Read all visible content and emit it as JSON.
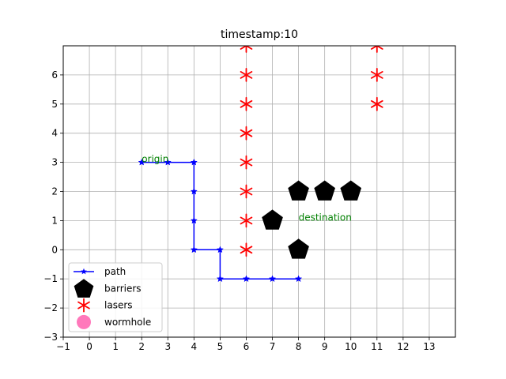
{
  "chart_data": {
    "type": "scatter",
    "title": "timestamp:10",
    "xlim": [
      -1,
      14
    ],
    "ylim": [
      -3,
      7
    ],
    "x_ticks": [
      -1,
      0,
      1,
      2,
      3,
      4,
      5,
      6,
      7,
      8,
      9,
      10,
      11,
      12,
      13
    ],
    "y_ticks": [
      -3,
      -2,
      -1,
      0,
      1,
      2,
      3,
      4,
      5,
      6
    ],
    "grid": true,
    "legend_placement": "bottom-left",
    "series": [
      {
        "name": "path",
        "kind": "line",
        "color": "#0000ff",
        "marker": "star",
        "points": [
          [
            2,
            3
          ],
          [
            3,
            3
          ],
          [
            4,
            3
          ],
          [
            4,
            2
          ],
          [
            4,
            1
          ],
          [
            4,
            0
          ],
          [
            5,
            0
          ],
          [
            5,
            -1
          ],
          [
            6,
            -1
          ],
          [
            7,
            -1
          ],
          [
            8,
            -1
          ]
        ]
      },
      {
        "name": "barriers",
        "kind": "scatter",
        "color": "#000000",
        "marker": "pentagon",
        "points": [
          [
            7,
            1
          ],
          [
            8,
            2
          ],
          [
            9,
            2
          ],
          [
            10,
            2
          ],
          [
            8,
            0
          ]
        ]
      },
      {
        "name": "lasers",
        "kind": "scatter",
        "color": "#ff0000",
        "marker": "tri-star",
        "points": [
          [
            6,
            0
          ],
          [
            6,
            1
          ],
          [
            6,
            2
          ],
          [
            6,
            3
          ],
          [
            6,
            4
          ],
          [
            6,
            5
          ],
          [
            6,
            6
          ],
          [
            6,
            7
          ],
          [
            11,
            5
          ],
          [
            11,
            6
          ],
          [
            11,
            7
          ]
        ]
      },
      {
        "name": "wormhole",
        "kind": "scatter",
        "color": "#ff69b4",
        "marker": "circle",
        "points": []
      }
    ],
    "annotations": [
      {
        "text": "origin",
        "x": 2,
        "y": 3,
        "color": "#008000"
      },
      {
        "text": "destination",
        "x": 8,
        "y": 1,
        "color": "#008000"
      }
    ]
  }
}
